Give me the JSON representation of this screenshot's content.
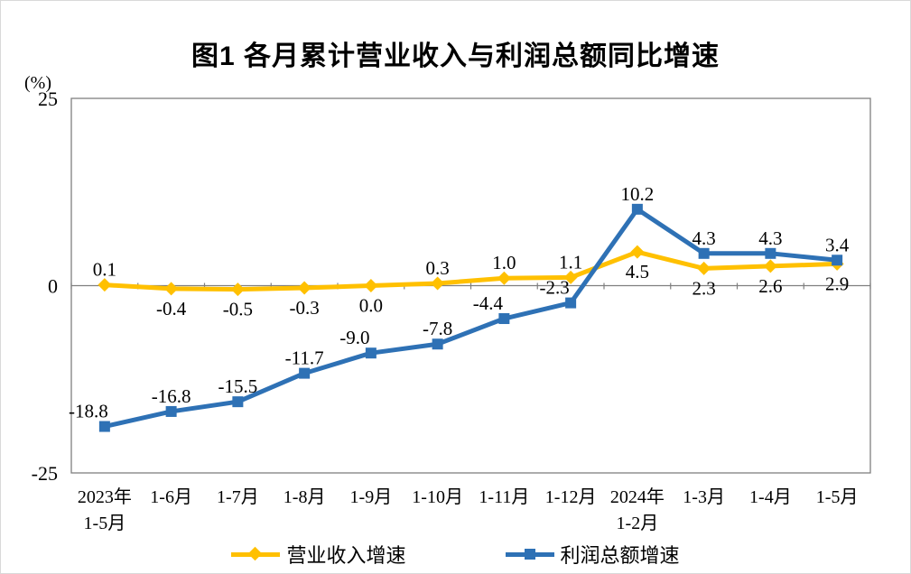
{
  "chart_data": {
    "type": "line",
    "title": "图1 各月累计营业收入与利润总额同比增速",
    "y_unit": "(%)",
    "ylim": [
      -25,
      25
    ],
    "yticks": [
      "25",
      "0",
      "-25"
    ],
    "grid": "zero-axis-only",
    "legend_position": "bottom",
    "categories": [
      [
        "2023年",
        "1-5月"
      ],
      [
        "1-6月"
      ],
      [
        "1-7月"
      ],
      [
        "1-8月"
      ],
      [
        "1-9月"
      ],
      [
        "1-10月"
      ],
      [
        "1-11月"
      ],
      [
        "1-12月"
      ],
      [
        "2024年",
        "1-2月"
      ],
      [
        "1-3月"
      ],
      [
        "1-4月"
      ],
      [
        "1-5月"
      ]
    ],
    "series": [
      {
        "name": "营业收入增速",
        "color": "#FFC000",
        "marker": "diamond",
        "values": [
          0.1,
          -0.4,
          -0.5,
          -0.3,
          0.0,
          0.3,
          1.0,
          1.1,
          4.5,
          2.3,
          2.6,
          2.9
        ],
        "labels": [
          "0.1",
          "-0.4",
          "-0.5",
          "-0.3",
          "0.0",
          "0.3",
          "1.0",
          "1.1",
          "4.5",
          "2.3",
          "2.6",
          "2.9"
        ],
        "label_side": [
          "above",
          "below",
          "below",
          "below",
          "below",
          "above",
          "above",
          "above",
          "below",
          "below",
          "below",
          "below"
        ]
      },
      {
        "name": "利润总额增速",
        "color": "#2E71B5",
        "marker": "square",
        "values": [
          -18.8,
          -16.8,
          -15.5,
          -11.7,
          -9.0,
          -7.8,
          -4.4,
          -2.3,
          10.2,
          4.3,
          4.3,
          3.4
        ],
        "labels": [
          "-18.8",
          "-16.8",
          "-15.5",
          "-11.7",
          "-9.0",
          "-7.8",
          "-4.4",
          "-2.3",
          "10.2",
          "4.3",
          "4.3",
          "3.4"
        ],
        "label_side": [
          "above-left",
          "above",
          "above",
          "above",
          "above-left",
          "above",
          "above-left",
          "above-left",
          "above",
          "above",
          "above",
          "above"
        ]
      }
    ]
  }
}
